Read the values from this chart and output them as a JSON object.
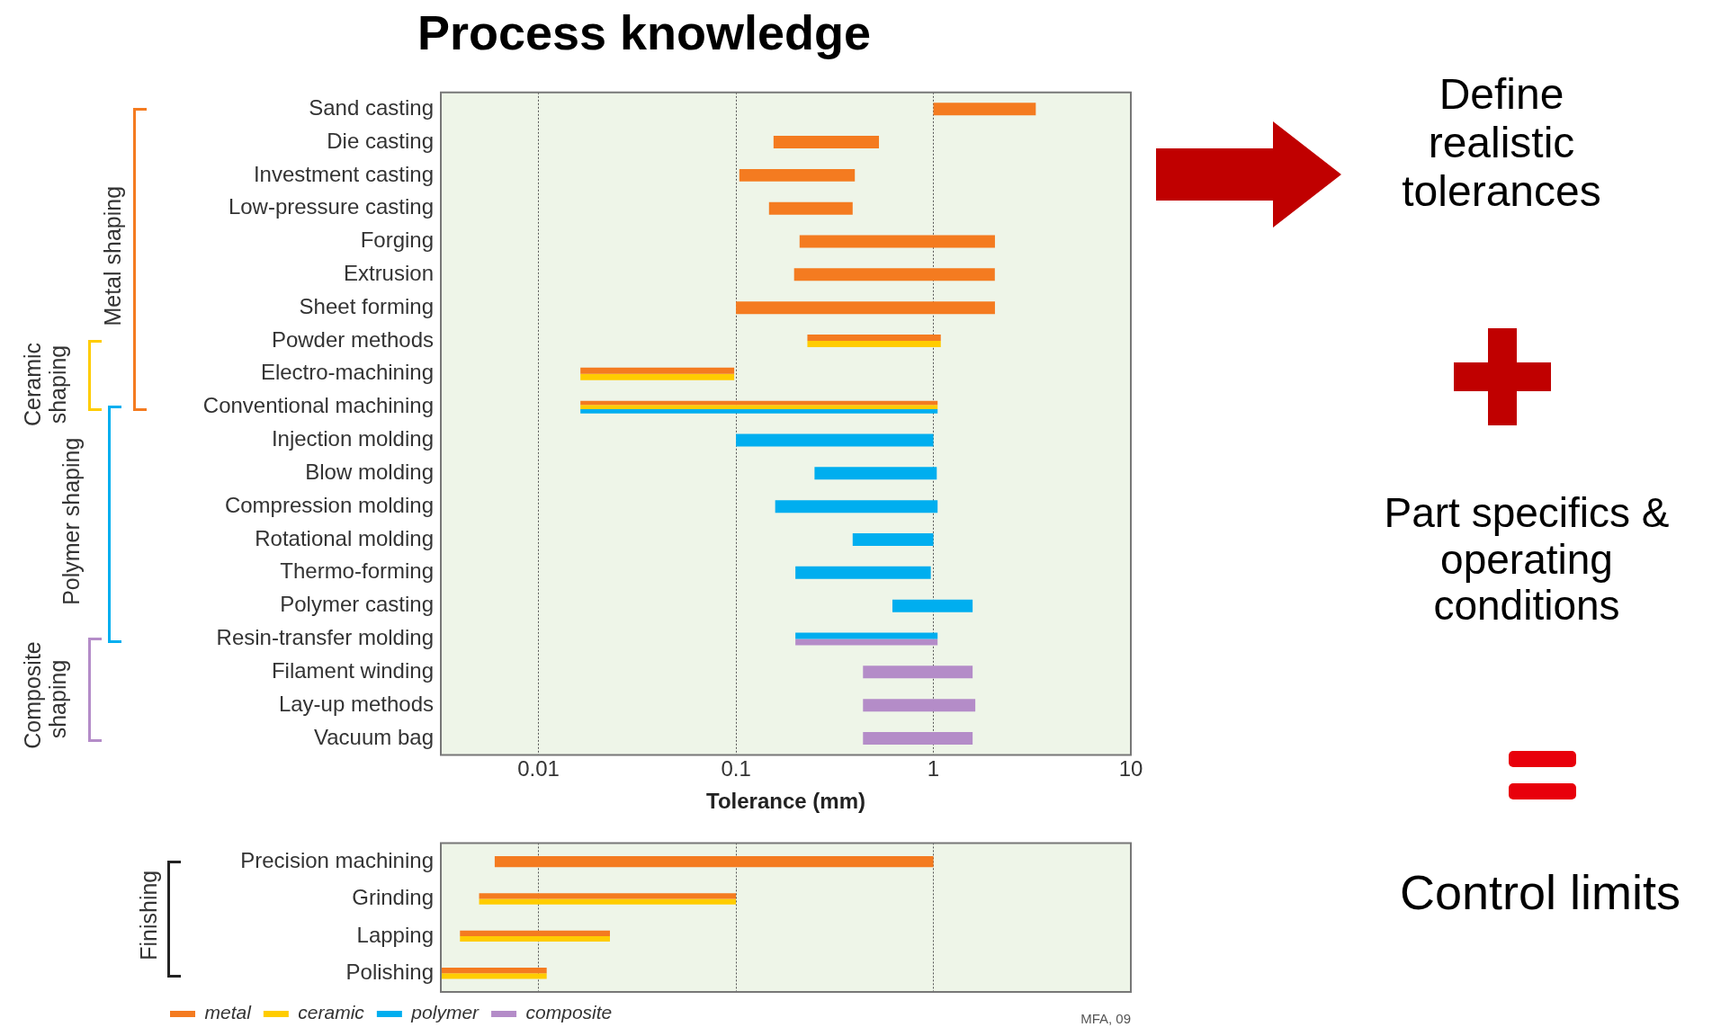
{
  "chart_data": [
    {
      "type": "bar",
      "orientation": "horizontal",
      "title": "Process knowledge",
      "xlabel": "Tolerance (mm)",
      "log": "x",
      "grid": "x",
      "legend": false,
      "categories": [
        "Sand casting",
        "Die casting",
        "Investment casting",
        "Low-pressure casting",
        "Forging",
        "Extrusion",
        "Sheet forming",
        "Powder methods",
        "Electro-machining",
        "Conventional machining",
        "Injection molding",
        "Blow molding",
        "Compression molding",
        "Rotational molding",
        "Thermo-forming",
        "Polymer casting",
        "Resin-transfer molding",
        "Filament winding",
        "Lay-up methods",
        "Vacuum bag"
      ],
      "xlim": [
        0.0032,
        10
      ],
      "xticks": [
        0.01,
        0.1,
        1,
        10
      ],
      "annotations": [
        "Metal shaping",
        "Ceramic shaping",
        "Polymer shaping",
        "Composite shaping"
      ],
      "series": [
        {
          "color": "#f47b20",
          "base": [
            1,
            0.155,
            0.104,
            0.147,
            0.21,
            0.197,
            0.1,
            0.23,
            0.0163,
            0.0163,
            null,
            null,
            null,
            null,
            null,
            null,
            null,
            null,
            null,
            null
          ],
          "values": [
            2.3,
            0.375,
            0.296,
            0.243,
            1.84,
            1.85,
            1.95,
            0.86,
            0.0817,
            1.034,
            null,
            null,
            null,
            null,
            null,
            null,
            null,
            null,
            null,
            null
          ]
        },
        {
          "color": "#ffcc00",
          "base": [
            null,
            null,
            null,
            null,
            null,
            null,
            null,
            0.23,
            0.0163,
            0.0163,
            null,
            null,
            null,
            null,
            null,
            null,
            null,
            null,
            null,
            null
          ],
          "values": [
            null,
            null,
            null,
            null,
            null,
            null,
            null,
            0.86,
            0.0817,
            1.034,
            null,
            null,
            null,
            null,
            null,
            null,
            null,
            null,
            null,
            null
          ]
        },
        {
          "color": "#00aeef",
          "base": [
            null,
            null,
            null,
            null,
            null,
            null,
            null,
            null,
            null,
            0.0163,
            0.1,
            0.25,
            0.158,
            0.39,
            0.2,
            0.62,
            0.2,
            null,
            null,
            null
          ],
          "values": [
            null,
            null,
            null,
            null,
            null,
            null,
            null,
            null,
            null,
            1.034,
            0.9,
            0.79,
            0.892,
            0.61,
            0.77,
            0.96,
            0.85,
            null,
            null,
            null
          ]
        },
        {
          "color": "#b48cc8",
          "base": [
            null,
            null,
            null,
            null,
            null,
            null,
            null,
            null,
            null,
            null,
            null,
            null,
            null,
            null,
            null,
            null,
            0.2,
            0.44,
            0.44,
            0.44
          ],
          "values": [
            null,
            null,
            null,
            null,
            null,
            null,
            null,
            null,
            null,
            null,
            null,
            null,
            null,
            null,
            null,
            null,
            0.85,
            1.14,
            1.19,
            1.14
          ]
        }
      ]
    },
    {
      "type": "bar",
      "orientation": "horizontal",
      "log": "x",
      "grid": "x",
      "legend": "bottom left",
      "tick_labels": "y",
      "categories": [
        "Precision machining",
        "Grinding",
        "Lapping",
        "Polishing"
      ],
      "xlim": [
        0.0032,
        10
      ],
      "xticks": [
        0.01,
        0.1,
        1,
        10
      ],
      "annotations": [
        "Finishing",
        "MFA, 09"
      ],
      "series": [
        {
          "name": "metal",
          "color": "#f47b20",
          "base": [
            0.006,
            0.005,
            0.004,
            0.0032
          ],
          "values": [
            0.994,
            0.095,
            0.019,
            0.0078
          ]
        },
        {
          "name": "ceramic",
          "color": "#ffcc00",
          "base": [
            null,
            0.005,
            0.004,
            0.0032
          ],
          "values": [
            null,
            0.095,
            0.019,
            0.0078
          ]
        },
        {
          "name": "polymer",
          "color": "#00aeef",
          "base": [
            null,
            null,
            null,
            null
          ],
          "values": [
            null,
            null,
            null,
            null
          ]
        },
        {
          "name": "composite",
          "color": "#b48cc8",
          "base": [
            null,
            null,
            null,
            null
          ],
          "values": [
            null,
            null,
            null,
            null
          ]
        }
      ]
    },
    {
      "type": "other",
      "annotations": [
        "Define realistic tolerances",
        "Part specifics & operating conditions",
        "Control limits"
      ]
    }
  ]
}
